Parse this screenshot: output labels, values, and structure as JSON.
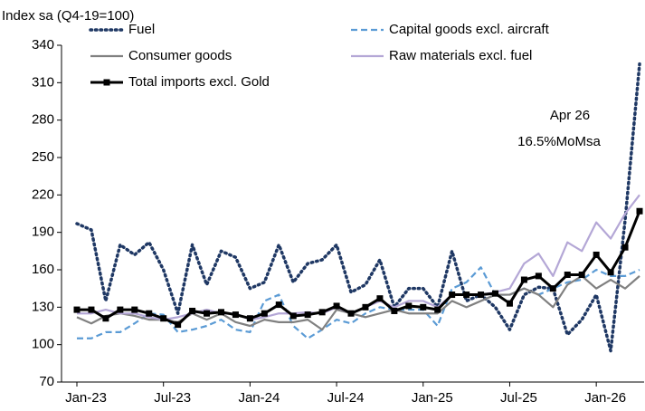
{
  "chart_data": {
    "type": "line",
    "y_axis_label": "Index sa (Q4-19=100)",
    "annotations": [
      "Apr 26",
      "16.5%MoMsa"
    ],
    "categories": [
      "Jan-23",
      null,
      null,
      null,
      null,
      null,
      "Jul-23",
      null,
      null,
      null,
      null,
      null,
      "Jan-24",
      null,
      null,
      null,
      null,
      null,
      "Jul-24",
      null,
      null,
      null,
      null,
      null,
      "Jan-25",
      null,
      null,
      null,
      null,
      null,
      "Jul-25",
      null,
      null,
      null,
      null,
      null,
      "Jan-26",
      null,
      null,
      null
    ],
    "ylim": [
      70,
      340
    ],
    "yticks": [
      70,
      100,
      130,
      160,
      190,
      220,
      250,
      280,
      310,
      340
    ],
    "series": [
      {
        "name": "Fuel",
        "color": "#1f3864",
        "style": "dotted",
        "values": [
          197,
          192,
          135,
          180,
          172,
          182,
          160,
          125,
          180,
          148,
          175,
          170,
          145,
          150,
          180,
          150,
          165,
          168,
          180,
          142,
          148,
          168,
          130,
          145,
          145,
          130,
          175,
          135,
          140,
          130,
          112,
          140,
          146,
          145,
          108,
          120,
          140,
          95,
          200,
          325
        ]
      },
      {
        "name": "Capital goods excl. aircraft",
        "color": "#5b9bd5",
        "style": "dashed",
        "values": [
          105,
          105,
          110,
          110,
          117,
          125,
          124,
          110,
          112,
          115,
          120,
          112,
          110,
          135,
          140,
          115,
          105,
          112,
          120,
          117,
          125,
          130,
          128,
          128,
          128,
          115,
          145,
          150,
          162,
          140,
          140,
          145,
          140,
          145,
          150,
          152,
          160,
          155,
          155,
          160
        ]
      },
      {
        "name": "Consumer goods",
        "color": "#808080",
        "style": "solid",
        "values": [
          122,
          117,
          123,
          125,
          123,
          120,
          120,
          118,
          125,
          120,
          125,
          118,
          115,
          120,
          118,
          118,
          120,
          112,
          128,
          125,
          122,
          125,
          128,
          125,
          125,
          125,
          135,
          130,
          135,
          140,
          140,
          145,
          140,
          130,
          148,
          155,
          145,
          152,
          145,
          155
        ]
      },
      {
        "name": "Raw materials excl. fuel",
        "color": "#b4a7d6",
        "style": "solid",
        "values": [
          125,
          125,
          128,
          125,
          125,
          122,
          120,
          122,
          125,
          128,
          125,
          125,
          120,
          122,
          125,
          125,
          126,
          125,
          130,
          125,
          130,
          135,
          130,
          135,
          135,
          130,
          140,
          140,
          140,
          142,
          145,
          165,
          173,
          155,
          182,
          175,
          198,
          185,
          205,
          220
        ]
      },
      {
        "name": "Total imports excl. Gold",
        "color": "#000000",
        "style": "solid",
        "markers": true,
        "values": [
          128,
          128,
          121,
          128,
          128,
          125,
          121,
          116,
          127,
          125,
          126,
          124,
          121,
          125,
          132,
          123,
          124,
          126,
          131,
          125,
          130,
          137,
          127,
          131,
          130,
          128,
          140,
          140,
          140,
          141,
          133,
          152,
          155,
          145,
          156,
          156,
          172,
          158,
          178,
          207
        ]
      }
    ]
  }
}
